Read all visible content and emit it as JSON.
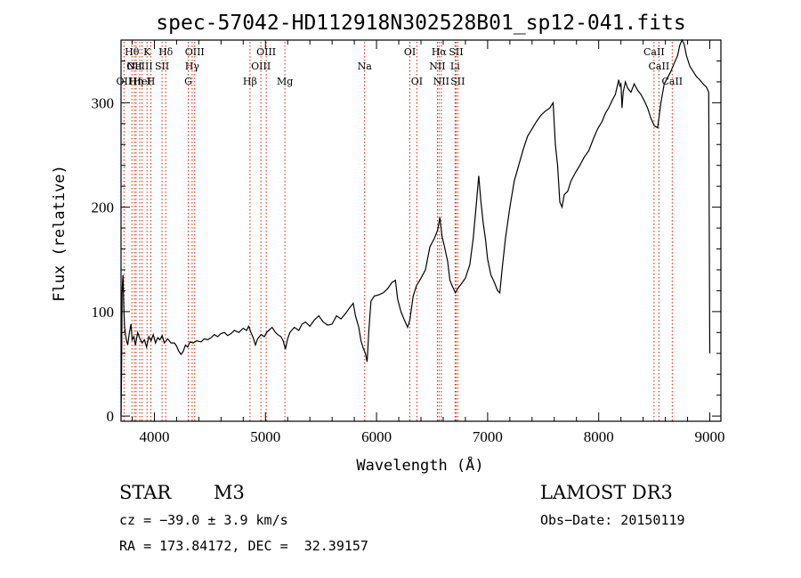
{
  "chart_data": {
    "type": "line",
    "title": "spec-57042-HD112918N302528B01_sp12-041.fits",
    "xlabel": "Wavelength (Å)",
    "ylabel": "Flux (relative)",
    "xlim": [
      3700,
      9100
    ],
    "ylim": [
      -5,
      360
    ],
    "x_ticks": [
      4000,
      5000,
      6000,
      7000,
      8000,
      9000
    ],
    "y_ticks": [
      0,
      100,
      200,
      300
    ],
    "grid": false,
    "series": [
      {
        "name": "flux",
        "color": "#000000",
        "points": [
          [
            3700,
            0
          ],
          [
            3705,
            40
          ],
          [
            3710,
            120
          ],
          [
            3718,
            135
          ],
          [
            3725,
            105
          ],
          [
            3732,
            85
          ],
          [
            3740,
            78
          ],
          [
            3750,
            72
          ],
          [
            3760,
            68
          ],
          [
            3775,
            80
          ],
          [
            3790,
            88
          ],
          [
            3800,
            73
          ],
          [
            3815,
            76
          ],
          [
            3830,
            68
          ],
          [
            3850,
            80
          ],
          [
            3870,
            74
          ],
          [
            3890,
            70
          ],
          [
            3910,
            73
          ],
          [
            3930,
            66
          ],
          [
            3950,
            76
          ],
          [
            3970,
            72
          ],
          [
            3990,
            78
          ],
          [
            4010,
            70
          ],
          [
            4030,
            75
          ],
          [
            4050,
            73
          ],
          [
            4070,
            77
          ],
          [
            4090,
            70
          ],
          [
            4120,
            74
          ],
          [
            4150,
            70
          ],
          [
            4180,
            70
          ],
          [
            4200,
            67
          ],
          [
            4220,
            62
          ],
          [
            4240,
            59
          ],
          [
            4260,
            62
          ],
          [
            4280,
            68
          ],
          [
            4300,
            66
          ],
          [
            4320,
            71
          ],
          [
            4350,
            70
          ],
          [
            4380,
            72
          ],
          [
            4420,
            71
          ],
          [
            4450,
            74
          ],
          [
            4480,
            73
          ],
          [
            4510,
            75
          ],
          [
            4540,
            78
          ],
          [
            4570,
            76
          ],
          [
            4600,
            79
          ],
          [
            4630,
            80
          ],
          [
            4660,
            77
          ],
          [
            4690,
            79
          ],
          [
            4720,
            82
          ],
          [
            4760,
            80
          ],
          [
            4800,
            84
          ],
          [
            4830,
            82
          ],
          [
            4850,
            86
          ],
          [
            4870,
            80
          ],
          [
            4890,
            75
          ],
          [
            4910,
            68
          ],
          [
            4930,
            74
          ],
          [
            4960,
            78
          ],
          [
            4990,
            76
          ],
          [
            5010,
            80
          ],
          [
            5030,
            82
          ],
          [
            5060,
            85
          ],
          [
            5090,
            80
          ],
          [
            5110,
            78
          ],
          [
            5140,
            76
          ],
          [
            5160,
            72
          ],
          [
            5180,
            64
          ],
          [
            5200,
            74
          ],
          [
            5220,
            80
          ],
          [
            5260,
            85
          ],
          [
            5300,
            82
          ],
          [
            5330,
            88
          ],
          [
            5360,
            90
          ],
          [
            5400,
            86
          ],
          [
            5440,
            92
          ],
          [
            5480,
            96
          ],
          [
            5520,
            90
          ],
          [
            5560,
            87
          ],
          [
            5600,
            88
          ],
          [
            5640,
            96
          ],
          [
            5680,
            93
          ],
          [
            5720,
            98
          ],
          [
            5760,
            104
          ],
          [
            5790,
            108
          ],
          [
            5810,
            96
          ],
          [
            5840,
            85
          ],
          [
            5860,
            72
          ],
          [
            5880,
            65
          ],
          [
            5900,
            60
          ],
          [
            5915,
            52
          ],
          [
            5930,
            80
          ],
          [
            5950,
            110
          ],
          [
            5980,
            115
          ],
          [
            6020,
            116
          ],
          [
            6060,
            118
          ],
          [
            6100,
            122
          ],
          [
            6140,
            128
          ],
          [
            6170,
            130
          ],
          [
            6190,
            112
          ],
          [
            6220,
            100
          ],
          [
            6250,
            92
          ],
          [
            6280,
            85
          ],
          [
            6300,
            92
          ],
          [
            6330,
            115
          ],
          [
            6360,
            125
          ],
          [
            6400,
            132
          ],
          [
            6440,
            140
          ],
          [
            6480,
            162
          ],
          [
            6520,
            170
          ],
          [
            6550,
            178
          ],
          [
            6570,
            190
          ],
          [
            6590,
            172
          ],
          [
            6610,
            163
          ],
          [
            6640,
            148
          ],
          [
            6660,
            130
          ],
          [
            6680,
            125
          ],
          [
            6710,
            118
          ],
          [
            6730,
            122
          ],
          [
            6760,
            126
          ],
          [
            6800,
            132
          ],
          [
            6840,
            145
          ],
          [
            6870,
            170
          ],
          [
            6900,
            205
          ],
          [
            6920,
            230
          ],
          [
            6940,
            205
          ],
          [
            6960,
            185
          ],
          [
            6980,
            170
          ],
          [
            7000,
            150
          ],
          [
            7030,
            135
          ],
          [
            7060,
            128
          ],
          [
            7090,
            120
          ],
          [
            7110,
            118
          ],
          [
            7130,
            140
          ],
          [
            7160,
            170
          ],
          [
            7200,
            200
          ],
          [
            7240,
            225
          ],
          [
            7280,
            240
          ],
          [
            7320,
            255
          ],
          [
            7360,
            268
          ],
          [
            7400,
            275
          ],
          [
            7440,
            282
          ],
          [
            7480,
            288
          ],
          [
            7520,
            292
          ],
          [
            7560,
            295
          ],
          [
            7590,
            300
          ],
          [
            7610,
            260
          ],
          [
            7630,
            240
          ],
          [
            7650,
            205
          ],
          [
            7670,
            200
          ],
          [
            7690,
            212
          ],
          [
            7720,
            215
          ],
          [
            7750,
            225
          ],
          [
            7790,
            233
          ],
          [
            7830,
            240
          ],
          [
            7870,
            248
          ],
          [
            7910,
            254
          ],
          [
            7950,
            265
          ],
          [
            7990,
            275
          ],
          [
            8030,
            282
          ],
          [
            8060,
            290
          ],
          [
            8090,
            295
          ],
          [
            8120,
            302
          ],
          [
            8150,
            308
          ],
          [
            8180,
            322
          ],
          [
            8190,
            316
          ],
          [
            8200,
            318
          ],
          [
            8210,
            295
          ],
          [
            8220,
            310
          ],
          [
            8240,
            320
          ],
          [
            8260,
            314
          ],
          [
            8290,
            310
          ],
          [
            8320,
            318
          ],
          [
            8350,
            312
          ],
          [
            8380,
            308
          ],
          [
            8410,
            302
          ],
          [
            8440,
            295
          ],
          [
            8470,
            285
          ],
          [
            8500,
            278
          ],
          [
            8530,
            276
          ],
          [
            8560,
            300
          ],
          [
            8590,
            318
          ],
          [
            8620,
            324
          ],
          [
            8650,
            330
          ],
          [
            8680,
            338
          ],
          [
            8710,
            345
          ],
          [
            8730,
            355
          ],
          [
            8750,
            360
          ],
          [
            8770,
            356
          ],
          [
            8790,
            345
          ],
          [
            8820,
            335
          ],
          [
            8850,
            330
          ],
          [
            8880,
            325
          ],
          [
            8910,
            322
          ],
          [
            8940,
            318
          ],
          [
            8970,
            315
          ],
          [
            8990,
            310
          ],
          [
            9000,
            60
          ]
        ]
      }
    ],
    "lines": [
      {
        "wl": 3727,
        "label": "OII",
        "row": 2
      },
      {
        "wl": 3798,
        "label": "Hθ",
        "row": 0
      },
      {
        "wl": 3820,
        "label": "OII",
        "row": 1
      },
      {
        "wl": 3835,
        "label": "Hη",
        "row": 2
      },
      {
        "wl": 3869,
        "label": "NeIII",
        "row": 1
      },
      {
        "wl": 3889,
        "label": "HeI",
        "row": 2
      },
      {
        "wl": 3934,
        "label": "K",
        "row": 0
      },
      {
        "wl": 3969,
        "label": "H",
        "row": 2
      },
      {
        "wl": 4069,
        "label": "SII",
        "row": 1
      },
      {
        "wl": 4102,
        "label": "Hδ",
        "row": 0
      },
      {
        "wl": 4305,
        "label": "G",
        "row": 2
      },
      {
        "wl": 4340,
        "label": "Hγ",
        "row": 1
      },
      {
        "wl": 4363,
        "label": "OIII",
        "row": 0
      },
      {
        "wl": 4861,
        "label": "Hβ",
        "row": 2
      },
      {
        "wl": 4959,
        "label": "OIII",
        "row": 1
      },
      {
        "wl": 5007,
        "label": "OIII",
        "row": 0
      },
      {
        "wl": 5175,
        "label": "Mg",
        "row": 2
      },
      {
        "wl": 5893,
        "label": "Na",
        "row": 1
      },
      {
        "wl": 6300,
        "label": "OI",
        "row": 0
      },
      {
        "wl": 6363,
        "label": "OI",
        "row": 2
      },
      {
        "wl": 6548,
        "label": "NII",
        "row": 1
      },
      {
        "wl": 6563,
        "label": "Hα",
        "row": 0
      },
      {
        "wl": 6583,
        "label": "NII",
        "row": 2
      },
      {
        "wl": 6707,
        "label": "Li",
        "row": 1
      },
      {
        "wl": 6716,
        "label": "SII",
        "row": 0
      },
      {
        "wl": 6731,
        "label": "SII",
        "row": 2
      },
      {
        "wl": 8498,
        "label": "CaII",
        "row": 0
      },
      {
        "wl": 8542,
        "label": "CaII",
        "row": 1
      },
      {
        "wl": 8662,
        "label": "CaII",
        "row": 2
      }
    ]
  },
  "info": {
    "class": "STAR",
    "subclass": "M3",
    "survey": "LAMOST DR3",
    "cz": "cz = −39.0 ± 3.9 km/s",
    "obs_date": "Obs−Date: 20150119",
    "coords": "RA = 173.84172, DEC =  32.39157"
  },
  "colors": {
    "line_marker": "#cc2200",
    "spectrum": "#000000",
    "axes": "#000000"
  }
}
